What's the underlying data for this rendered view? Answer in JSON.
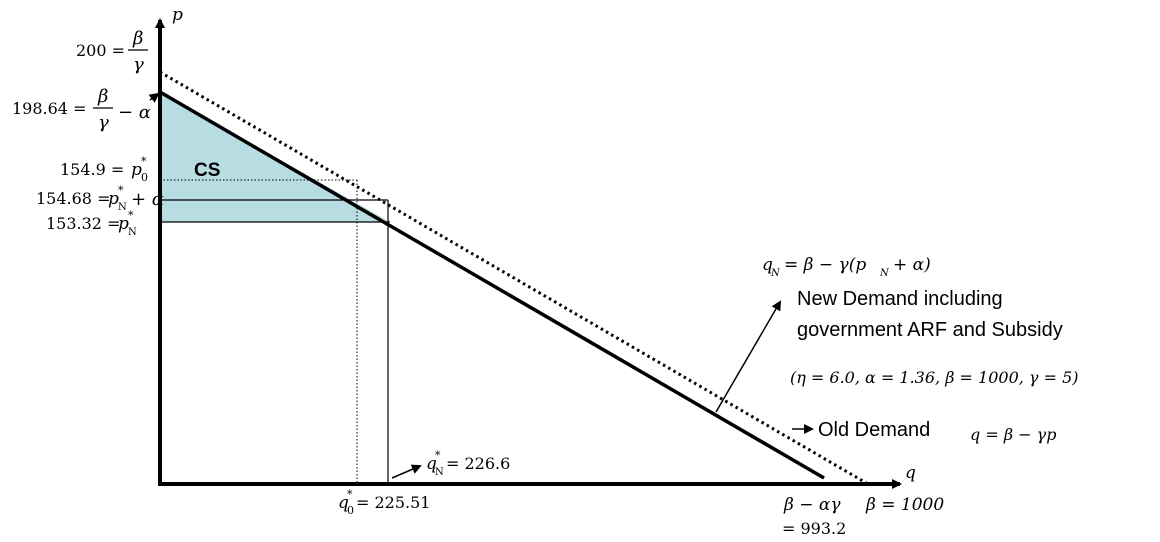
{
  "axes": {
    "y_label": "p",
    "x_label": "q"
  },
  "y_ticks": {
    "t200": {
      "value": "200 =",
      "frac_num": "β",
      "frac_den": "γ"
    },
    "t19864": {
      "value": "198.64 =",
      "frac_num": "β",
      "frac_den": "γ",
      "suffix": "− α"
    },
    "t1549": {
      "value": "154.9 =",
      "var": "p",
      "sup": "*",
      "sub": "0"
    },
    "t15468": {
      "value": "154.68 =",
      "var": "p",
      "sup": "*",
      "sub": "N",
      "suffix": "+ α"
    },
    "t15332": {
      "value": "153.32 =",
      "var": "p",
      "sup": "*",
      "sub": "N"
    }
  },
  "x_ticks": {
    "q0": {
      "var": "q",
      "sup": "*",
      "sub": "0",
      "value": "= 225.51"
    },
    "qN": {
      "var": "q",
      "sup": "*",
      "sub": "N",
      "value": "= 226.6"
    },
    "intercept_new": {
      "expr": "β − αγ",
      "value": "= 993.2"
    },
    "intercept_old": {
      "expr": "β = 1000"
    }
  },
  "labels": {
    "cs": "CS",
    "new_demand_eq": "q_N = β − γ(p_N + α)",
    "new_demand_eq_parts": {
      "q": "q",
      "sub": "N",
      "rest": "= β − γ(p",
      "sub2": "N",
      "tail": "+ α)"
    },
    "new_demand_line1": "New Demand including",
    "new_demand_line2": "government ARF and Subsidy",
    "params": "(η = 6.0, α = 1.36, β = 1000, γ = 5)",
    "old_demand": "Old Demand",
    "old_demand_eq": "q = β − γp"
  },
  "colors": {
    "cs_fill": "#b7dde3",
    "line": "#000000"
  }
}
